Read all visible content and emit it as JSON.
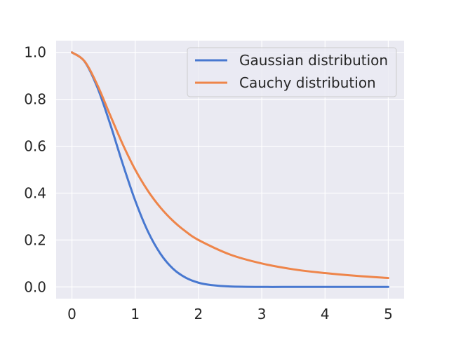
{
  "chart_data": {
    "type": "line",
    "title": "",
    "xlabel": "",
    "ylabel": "",
    "xlim": [
      -0.25,
      5.25
    ],
    "ylim": [
      -0.05,
      1.05
    ],
    "grid": true,
    "legend_placement": "top-right",
    "xticks": [
      0,
      1,
      2,
      3,
      4,
      5
    ],
    "xtick_labels": [
      "0",
      "1",
      "2",
      "3",
      "4",
      "5"
    ],
    "yticks": [
      0.0,
      0.2,
      0.4,
      0.6,
      0.8,
      1.0
    ],
    "ytick_labels": [
      "0.0",
      "0.2",
      "0.4",
      "0.6",
      "0.8",
      "1.0"
    ],
    "series": [
      {
        "name": "Gaussian distribution",
        "color": "#4878d0",
        "x": [
          0,
          0.2,
          0.4,
          0.6,
          0.8,
          1.0,
          1.2,
          1.4,
          1.6,
          1.8,
          2.0,
          2.2,
          2.5,
          3.0,
          3.5,
          4.0,
          4.5,
          5.0
        ],
        "y": [
          1.0,
          0.961,
          0.852,
          0.698,
          0.527,
          0.368,
          0.237,
          0.141,
          0.077,
          0.039,
          0.018,
          0.008,
          0.002,
          0.0,
          0.0,
          0.0,
          0.0,
          0.0
        ]
      },
      {
        "name": "Cauchy distribution",
        "color": "#ee854a",
        "x": [
          0,
          0.2,
          0.4,
          0.6,
          0.8,
          1.0,
          1.2,
          1.4,
          1.6,
          1.8,
          2.0,
          2.5,
          3.0,
          3.5,
          4.0,
          4.5,
          5.0
        ],
        "y": [
          1.0,
          0.962,
          0.862,
          0.735,
          0.61,
          0.5,
          0.41,
          0.338,
          0.281,
          0.236,
          0.2,
          0.138,
          0.1,
          0.075,
          0.059,
          0.047,
          0.038
        ]
      }
    ]
  }
}
